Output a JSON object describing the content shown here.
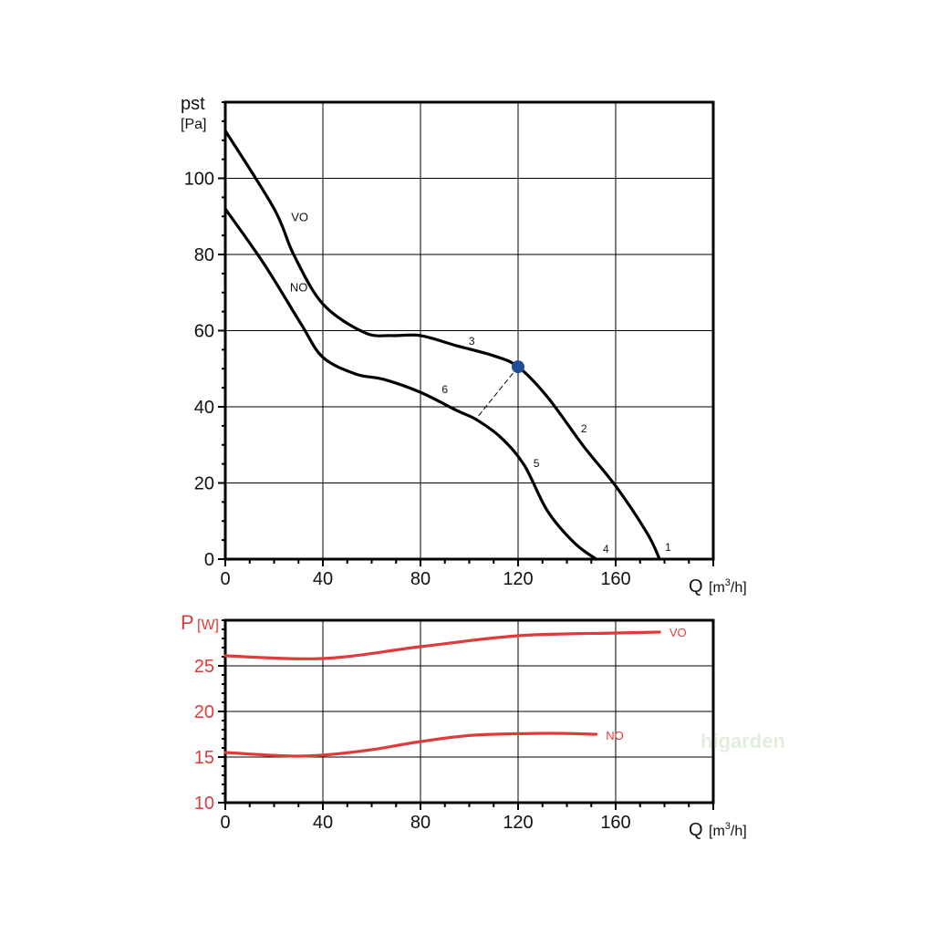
{
  "watermark": "higarden",
  "chart_data": [
    {
      "type": "line",
      "title": "",
      "ylabel": "pst",
      "yunit": "[Pa]",
      "xlabel": "Q",
      "xunit_pre": "[m",
      "xunit_sup": "3",
      "xunit_post": "/h]",
      "xlim": [
        0,
        200
      ],
      "ylim": [
        0,
        120
      ],
      "xticks": [
        0,
        40,
        80,
        120,
        160
      ],
      "yticks": [
        0,
        20,
        40,
        60,
        80,
        100
      ],
      "grid": true,
      "line_color": "#000000",
      "series": [
        {
          "name": "VO",
          "label_at": [
            27,
            90
          ],
          "x": [
            0,
            20,
            28,
            40,
            57,
            68,
            80,
            95,
            110,
            120,
            132,
            147,
            160,
            173,
            178
          ],
          "y": [
            112.5,
            92,
            80,
            67,
            59.5,
            58.7,
            58.7,
            56,
            53.4,
            50.5,
            42.6,
            29.5,
            19.2,
            6.7,
            0
          ]
        },
        {
          "name": "NO",
          "label_at": [
            26.5,
            71.5
          ],
          "x": [
            0,
            16,
            31,
            40,
            53.5,
            65,
            80,
            95,
            103,
            113,
            122.5,
            132,
            143,
            152
          ],
          "y": [
            92,
            77.4,
            61.8,
            53,
            48.6,
            47.2,
            43.8,
            39,
            36.6,
            31.9,
            24.7,
            12.7,
            4.3,
            0
          ]
        }
      ],
      "operating_point": {
        "x": 120,
        "y": 50.5,
        "color": "#1f4e9a"
      },
      "dashed_line": {
        "x": [
          120,
          103
        ],
        "y": [
          50.5,
          37
        ]
      },
      "annotations": [
        {
          "text": "3",
          "x": 101,
          "y": 57.5
        },
        {
          "text": "6",
          "x": 90,
          "y": 44.8
        },
        {
          "text": "2",
          "x": 147,
          "y": 34.5
        },
        {
          "text": "5",
          "x": 127.5,
          "y": 25.4
        },
        {
          "text": "4",
          "x": 156,
          "y": 2.9
        },
        {
          "text": "1",
          "x": 181.5,
          "y": 3.4
        }
      ]
    },
    {
      "type": "line",
      "title": "",
      "ylabel": "P",
      "yunit": "[W]",
      "xlabel": "Q",
      "xunit_pre": "[m",
      "xunit_sup": "3",
      "xunit_post": "/h]",
      "xlim": [
        0,
        200
      ],
      "ylim": [
        10,
        30
      ],
      "xticks": [
        0,
        40,
        80,
        120,
        160
      ],
      "yticks": [
        10,
        15,
        20,
        25
      ],
      "grid": true,
      "line_color": "#e03a3a",
      "series": [
        {
          "name": "VO",
          "label_at": [
            182,
            28.7
          ],
          "x": [
            0,
            40,
            80,
            120,
            160,
            178
          ],
          "y": [
            26.1,
            25.8,
            27.1,
            28.3,
            28.6,
            28.7
          ]
        },
        {
          "name": "NO",
          "label_at": [
            156,
            17.4
          ],
          "x": [
            0,
            31,
            57,
            80,
            102,
            132,
            152
          ],
          "y": [
            15.5,
            15.1,
            15.7,
            16.7,
            17.4,
            17.6,
            17.5
          ]
        }
      ]
    }
  ]
}
